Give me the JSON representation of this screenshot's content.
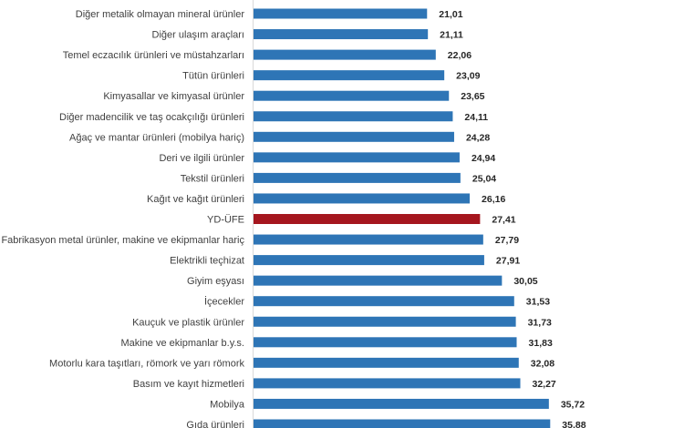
{
  "chart_data": {
    "type": "bar",
    "orientation": "horizontal",
    "categories": [
      "Diğer metalik olmayan mineral ürünler",
      "Diğer ulaşım araçları",
      "Temel eczacılık ürünleri ve müstahzarları",
      "Tütün ürünleri",
      "Kimyasallar ve kimyasal ürünler",
      "Diğer madencilik ve taş ocakçılığı ürünleri",
      "Ağaç ve mantar ürünleri (mobilya hariç)",
      "Deri ve ilgili ürünler",
      "Tekstil ürünleri",
      "Kağıt ve kağıt ürünleri",
      "YD-ÜFE",
      "Fabrikasyon metal ürünler, makine ve ekipmanlar hariç",
      "Elektrikli teçhizat",
      "Giyim eşyası",
      "İçecekler",
      "Kauçuk ve plastik ürünler",
      "Makine ve ekipmanlar b.y.s.",
      "Motorlu kara taşıtları, römork ve yarı römork",
      "Basım ve kayıt hizmetleri",
      "Mobilya",
      "Gıda ürünleri"
    ],
    "values": [
      21.01,
      21.11,
      22.06,
      23.09,
      23.65,
      24.11,
      24.28,
      24.94,
      25.04,
      26.16,
      27.41,
      27.79,
      27.91,
      30.05,
      31.53,
      31.73,
      31.83,
      32.08,
      32.27,
      35.72,
      35.88
    ],
    "value_labels": [
      "21,01",
      "21,11",
      "22,06",
      "23,09",
      "23,65",
      "24,11",
      "24,28",
      "24,94",
      "25,04",
      "26,16",
      "27,41",
      "27,79",
      "27,91",
      "30,05",
      "31,53",
      "31,73",
      "31,83",
      "32,08",
      "32,27",
      "35,72",
      "35,88"
    ],
    "highlight_category": "YD-ÜFE",
    "colors": {
      "default": "#2e75b6",
      "highlight": "#a5161e",
      "axis": "#d9d9d9"
    },
    "xlim": [
      0,
      52
    ],
    "grid": false,
    "title": "",
    "xlabel": "",
    "ylabel": ""
  }
}
